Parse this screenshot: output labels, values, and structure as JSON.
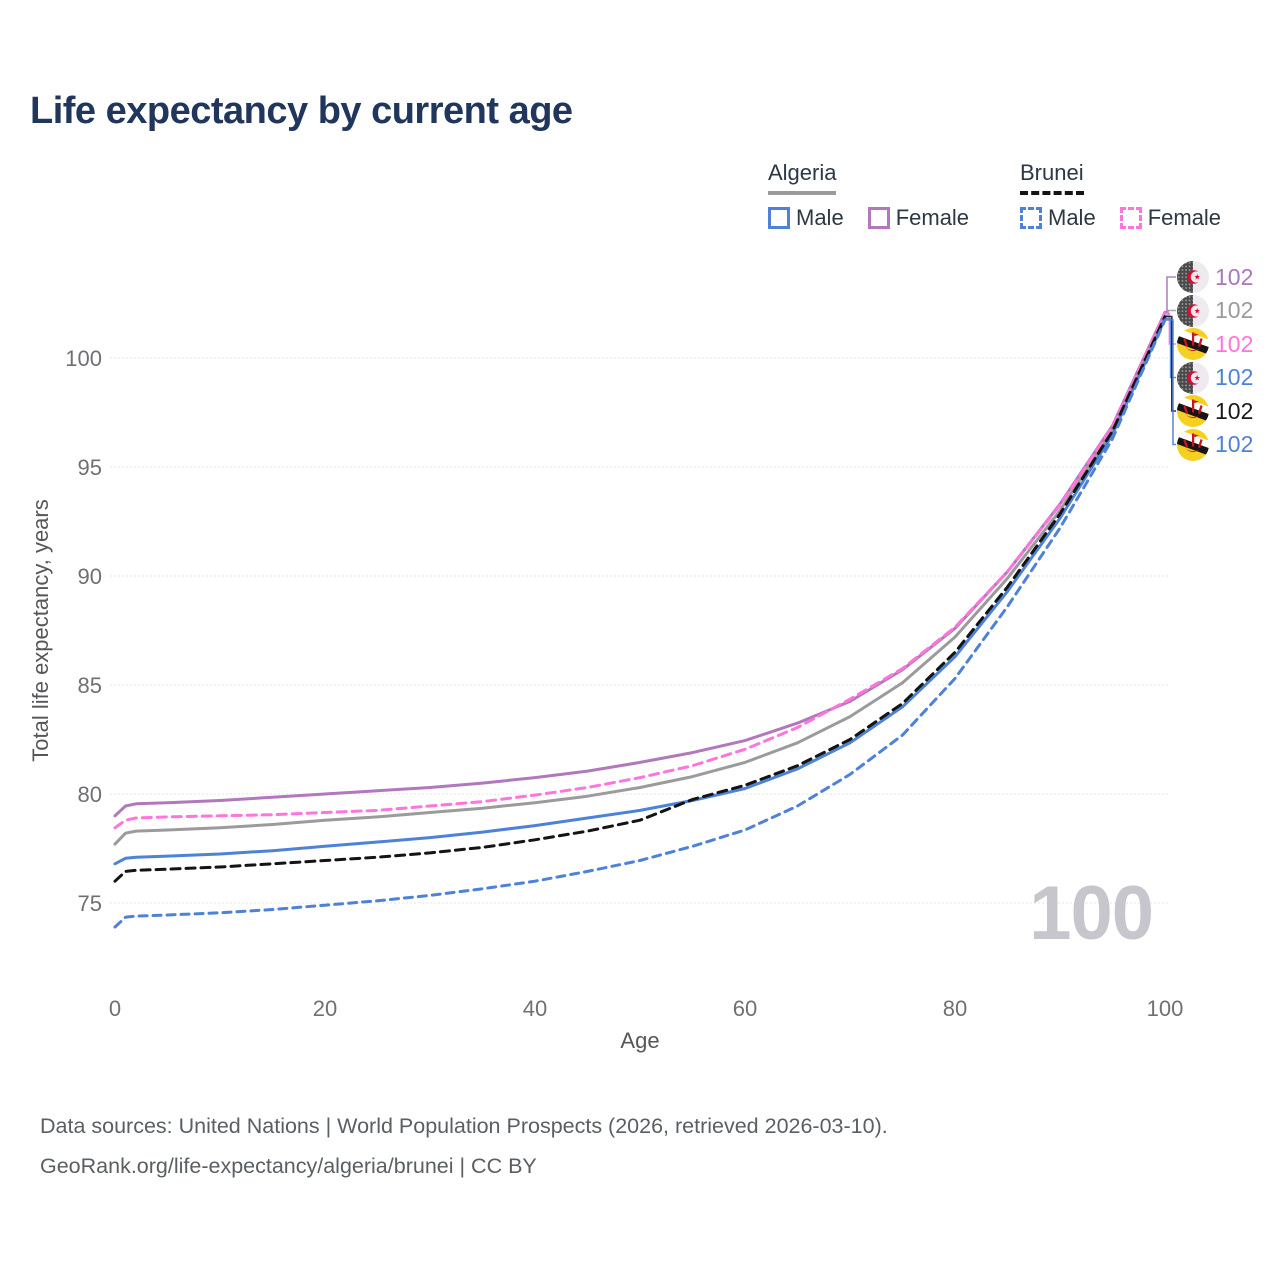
{
  "title": "Life expectancy by current age",
  "legend": {
    "groups": [
      {
        "label": "Algeria",
        "line_style": "solid",
        "line_color": "#9b9b9b",
        "items": [
          {
            "label": "Male",
            "color": "#4e82d8",
            "dashed": false
          },
          {
            "label": "Female",
            "color": "#b178bb",
            "dashed": false
          }
        ]
      },
      {
        "label": "Brunei",
        "line_style": "dashed",
        "line_color": "#141414",
        "items": [
          {
            "label": "Male",
            "color": "#4e82d8",
            "dashed": true
          },
          {
            "label": "Female",
            "color": "#ff75dc",
            "dashed": true
          }
        ]
      }
    ]
  },
  "chart_data": {
    "type": "line",
    "title": "Life expectancy by current age",
    "xlabel": "Age",
    "ylabel": "Total life expectancy, years",
    "xlim": [
      0,
      100
    ],
    "ylim": [
      73.5,
      102.5
    ],
    "xticks": [
      0,
      20,
      40,
      60,
      80,
      100
    ],
    "yticks": [
      75,
      80,
      85,
      90,
      95,
      100
    ],
    "grid": true,
    "legend_position": "top-right",
    "x": [
      0,
      1,
      2,
      5,
      10,
      15,
      20,
      25,
      30,
      35,
      40,
      45,
      50,
      55,
      60,
      65,
      70,
      75,
      80,
      85,
      90,
      95,
      100
    ],
    "series": [
      {
        "name": "Algeria Total",
        "country": "Algeria",
        "sex": "Both",
        "color": "#9b9b9b",
        "dash": null,
        "values": [
          77.7,
          78.2,
          78.3,
          78.35,
          78.45,
          78.6,
          78.8,
          78.95,
          79.15,
          79.35,
          79.6,
          79.9,
          80.3,
          80.8,
          81.45,
          82.35,
          83.55,
          85.1,
          87.2,
          89.9,
          93.0,
          96.7,
          101.95
        ]
      },
      {
        "name": "Algeria Female",
        "country": "Algeria",
        "sex": "Female",
        "color": "#b178bb",
        "dash": null,
        "values": [
          79.0,
          79.45,
          79.55,
          79.6,
          79.7,
          79.85,
          80.0,
          80.15,
          80.3,
          80.5,
          80.75,
          81.05,
          81.45,
          81.9,
          82.45,
          83.25,
          84.25,
          85.7,
          87.6,
          90.2,
          93.3,
          96.9,
          102.1
        ]
      },
      {
        "name": "Brunei Female",
        "country": "Brunei",
        "sex": "Female",
        "color": "#ff75dc",
        "dash": "9 6",
        "values": [
          78.45,
          78.8,
          78.9,
          78.95,
          79.0,
          79.05,
          79.15,
          79.25,
          79.45,
          79.65,
          79.95,
          80.3,
          80.75,
          81.3,
          82.05,
          83.05,
          84.35,
          85.75,
          87.65,
          90.2,
          93.25,
          96.85,
          102.05
        ]
      },
      {
        "name": "Algeria Male",
        "country": "Algeria",
        "sex": "Male",
        "color": "#4e82d8",
        "dash": null,
        "values": [
          76.8,
          77.05,
          77.1,
          77.15,
          77.25,
          77.4,
          77.6,
          77.8,
          78.0,
          78.25,
          78.55,
          78.9,
          79.25,
          79.7,
          80.25,
          81.15,
          82.35,
          84.0,
          86.3,
          89.3,
          92.65,
          96.5,
          101.8
        ]
      },
      {
        "name": "Brunei Total",
        "country": "Brunei",
        "sex": "Both",
        "color": "#141414",
        "dash": "9 6",
        "values": [
          76.0,
          76.45,
          76.5,
          76.55,
          76.65,
          76.8,
          76.95,
          77.1,
          77.3,
          77.55,
          77.9,
          78.3,
          78.8,
          79.75,
          80.4,
          81.3,
          82.5,
          84.15,
          86.5,
          89.5,
          92.85,
          96.65,
          101.9
        ]
      },
      {
        "name": "Brunei Male",
        "country": "Brunei",
        "sex": "Male",
        "color": "#4e82d8",
        "dash": "8 6",
        "values": [
          73.9,
          74.35,
          74.4,
          74.45,
          74.55,
          74.7,
          74.9,
          75.1,
          75.35,
          75.65,
          76.0,
          76.45,
          76.95,
          77.6,
          78.35,
          79.45,
          80.9,
          82.7,
          85.3,
          88.6,
          92.2,
          96.3,
          101.75
        ]
      }
    ],
    "end_labels": [
      {
        "series_index": 1,
        "value": "102",
        "color": "#a878b8",
        "flag": "algeria"
      },
      {
        "series_index": 0,
        "value": "102",
        "color": "#9b9b9b",
        "flag": "algeria"
      },
      {
        "series_index": 2,
        "value": "102",
        "color": "#ff75dc",
        "flag": "brunei"
      },
      {
        "series_index": 3,
        "value": "102",
        "color": "#4e82d8",
        "flag": "algeria"
      },
      {
        "series_index": 4,
        "value": "102",
        "color": "#1a1a1a",
        "flag": "brunei"
      },
      {
        "series_index": 5,
        "value": "102",
        "color": "#4e82d8",
        "flag": "brunei"
      }
    ],
    "grid_color": "#e9e9ee"
  },
  "watermark": "100",
  "footer": {
    "line1": "Data sources: United Nations | World Population Prospects (2026, retrieved 2026-03-10).",
    "line2": "GeoRank.org/life-expectancy/algeria/brunei | CC BY"
  },
  "colors": {
    "title": "#20365c",
    "male": "#4e82d8",
    "female_algeria": "#b178bb",
    "female_brunei": "#ff75dc",
    "algeria_total": "#9b9b9b",
    "brunei_total": "#141414",
    "watermark": "#c6c6cc"
  }
}
